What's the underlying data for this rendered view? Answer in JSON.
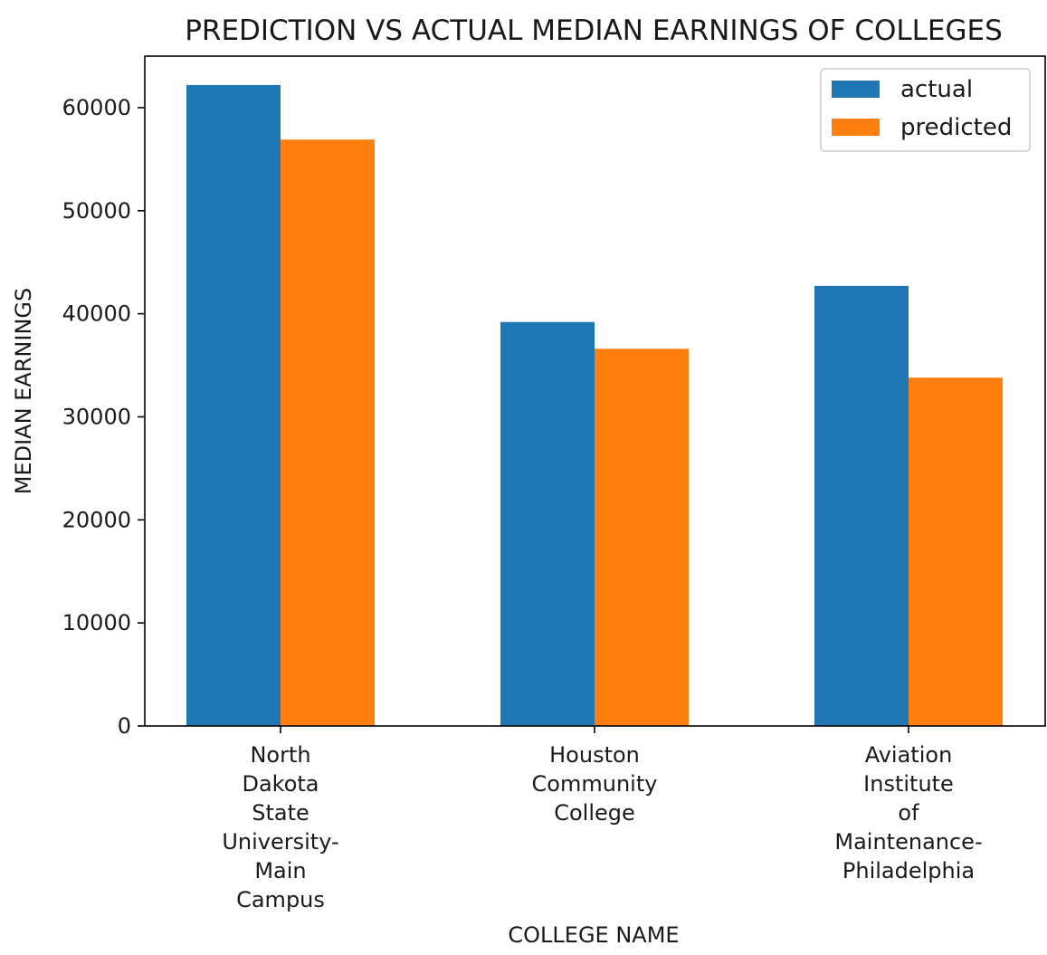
{
  "chart_data": {
    "type": "bar",
    "title": "PREDICTION VS ACTUAL MEDIAN EARNINGS OF COLLEGES",
    "xlabel": "COLLEGE NAME",
    "ylabel": "MEDIAN EARNINGS",
    "categories": [
      [
        "North",
        "Dakota",
        "State",
        "University-",
        "Main",
        "Campus"
      ],
      [
        "Houston",
        "Community",
        "College"
      ],
      [
        "Aviation",
        "Institute",
        "of",
        "Maintenance-",
        "Philadelphia"
      ]
    ],
    "series": [
      {
        "name": "actual",
        "color": "#1f77b4",
        "values": [
          62200,
          39200,
          42700
        ]
      },
      {
        "name": "predicted",
        "color": "#ff7f0e",
        "values": [
          56900,
          36600,
          33800
        ]
      }
    ],
    "ylim": [
      0,
      65000
    ],
    "yticks": [
      0,
      10000,
      20000,
      30000,
      40000,
      50000,
      60000
    ],
    "grid": false,
    "legend_position": "top-right"
  }
}
